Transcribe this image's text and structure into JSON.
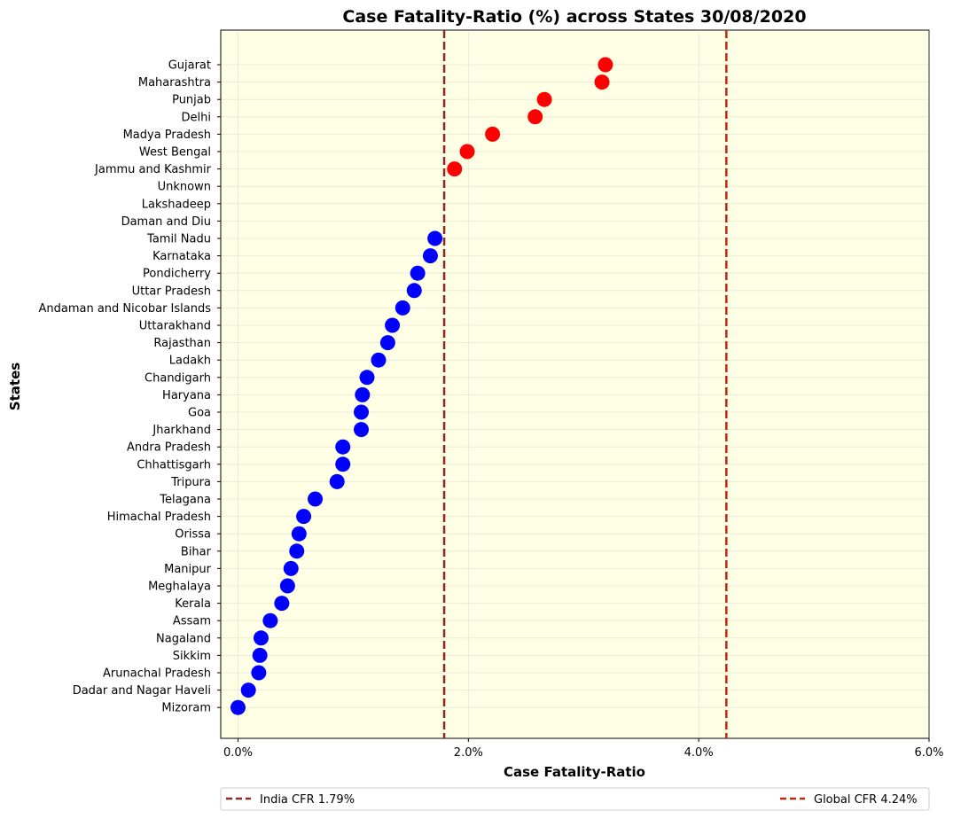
{
  "chart_data": {
    "type": "scatter",
    "title": "Case Fatality-Ratio (%) across States 30/08/2020",
    "xlabel": "Case Fatality-Ratio",
    "ylabel": "States",
    "xlim": [
      -0.15,
      6.0
    ],
    "xticks": [
      {
        "value": 0,
        "label": "0.0%"
      },
      {
        "value": 2,
        "label": "2.0%"
      },
      {
        "value": 4,
        "label": "4.0%"
      },
      {
        "value": 6,
        "label": "6.0%"
      }
    ],
    "grid": true,
    "legend_position": "bottom, below axis",
    "colors": {
      "background": "#ffffe6",
      "above_india": "#ff0000",
      "below_india": "#0000ff",
      "india_line": "#8b2a1e",
      "global_line": "#c0280e"
    },
    "reference_lines": [
      {
        "label": "India CFR 1.79%",
        "value": 1.79,
        "color": "#8b2a1e"
      },
      {
        "label": "Global CFR 4.24%",
        "value": 4.24,
        "color": "#c0280e"
      }
    ],
    "categories": [
      "Gujarat",
      "Maharashtra",
      "Punjab",
      "Delhi",
      "Madya Pradesh",
      "West Bengal",
      "Jammu and Kashmir",
      "Unknown",
      "Lakshadeep",
      "Daman and Diu",
      "Tamil Nadu",
      "Karnataka",
      "Pondicherry",
      "Uttar Pradesh",
      "Andaman and Nicobar Islands",
      "Uttarakhand",
      "Rajasthan",
      "Ladakh",
      "Chandigarh",
      "Haryana",
      "Goa",
      "Jharkhand",
      "Andra Pradesh",
      "Chhattisgarh",
      "Tripura",
      "Telagana",
      "Himachal Pradesh",
      "Orissa",
      "Bihar",
      "Manipur",
      "Meghalaya",
      "Kerala",
      "Assam",
      "Nagaland",
      "Sikkim",
      "Arunachal Pradesh",
      "Dadar and Nagar Haveli",
      "Mizoram"
    ],
    "values": [
      3.19,
      3.16,
      2.66,
      2.58,
      2.21,
      1.99,
      1.88,
      null,
      null,
      null,
      1.71,
      1.67,
      1.56,
      1.53,
      1.43,
      1.34,
      1.3,
      1.22,
      1.12,
      1.08,
      1.07,
      1.07,
      0.91,
      0.91,
      0.86,
      0.67,
      0.57,
      0.53,
      0.51,
      0.46,
      0.43,
      0.38,
      0.28,
      0.2,
      0.19,
      0.18,
      0.09,
      0.0
    ]
  }
}
